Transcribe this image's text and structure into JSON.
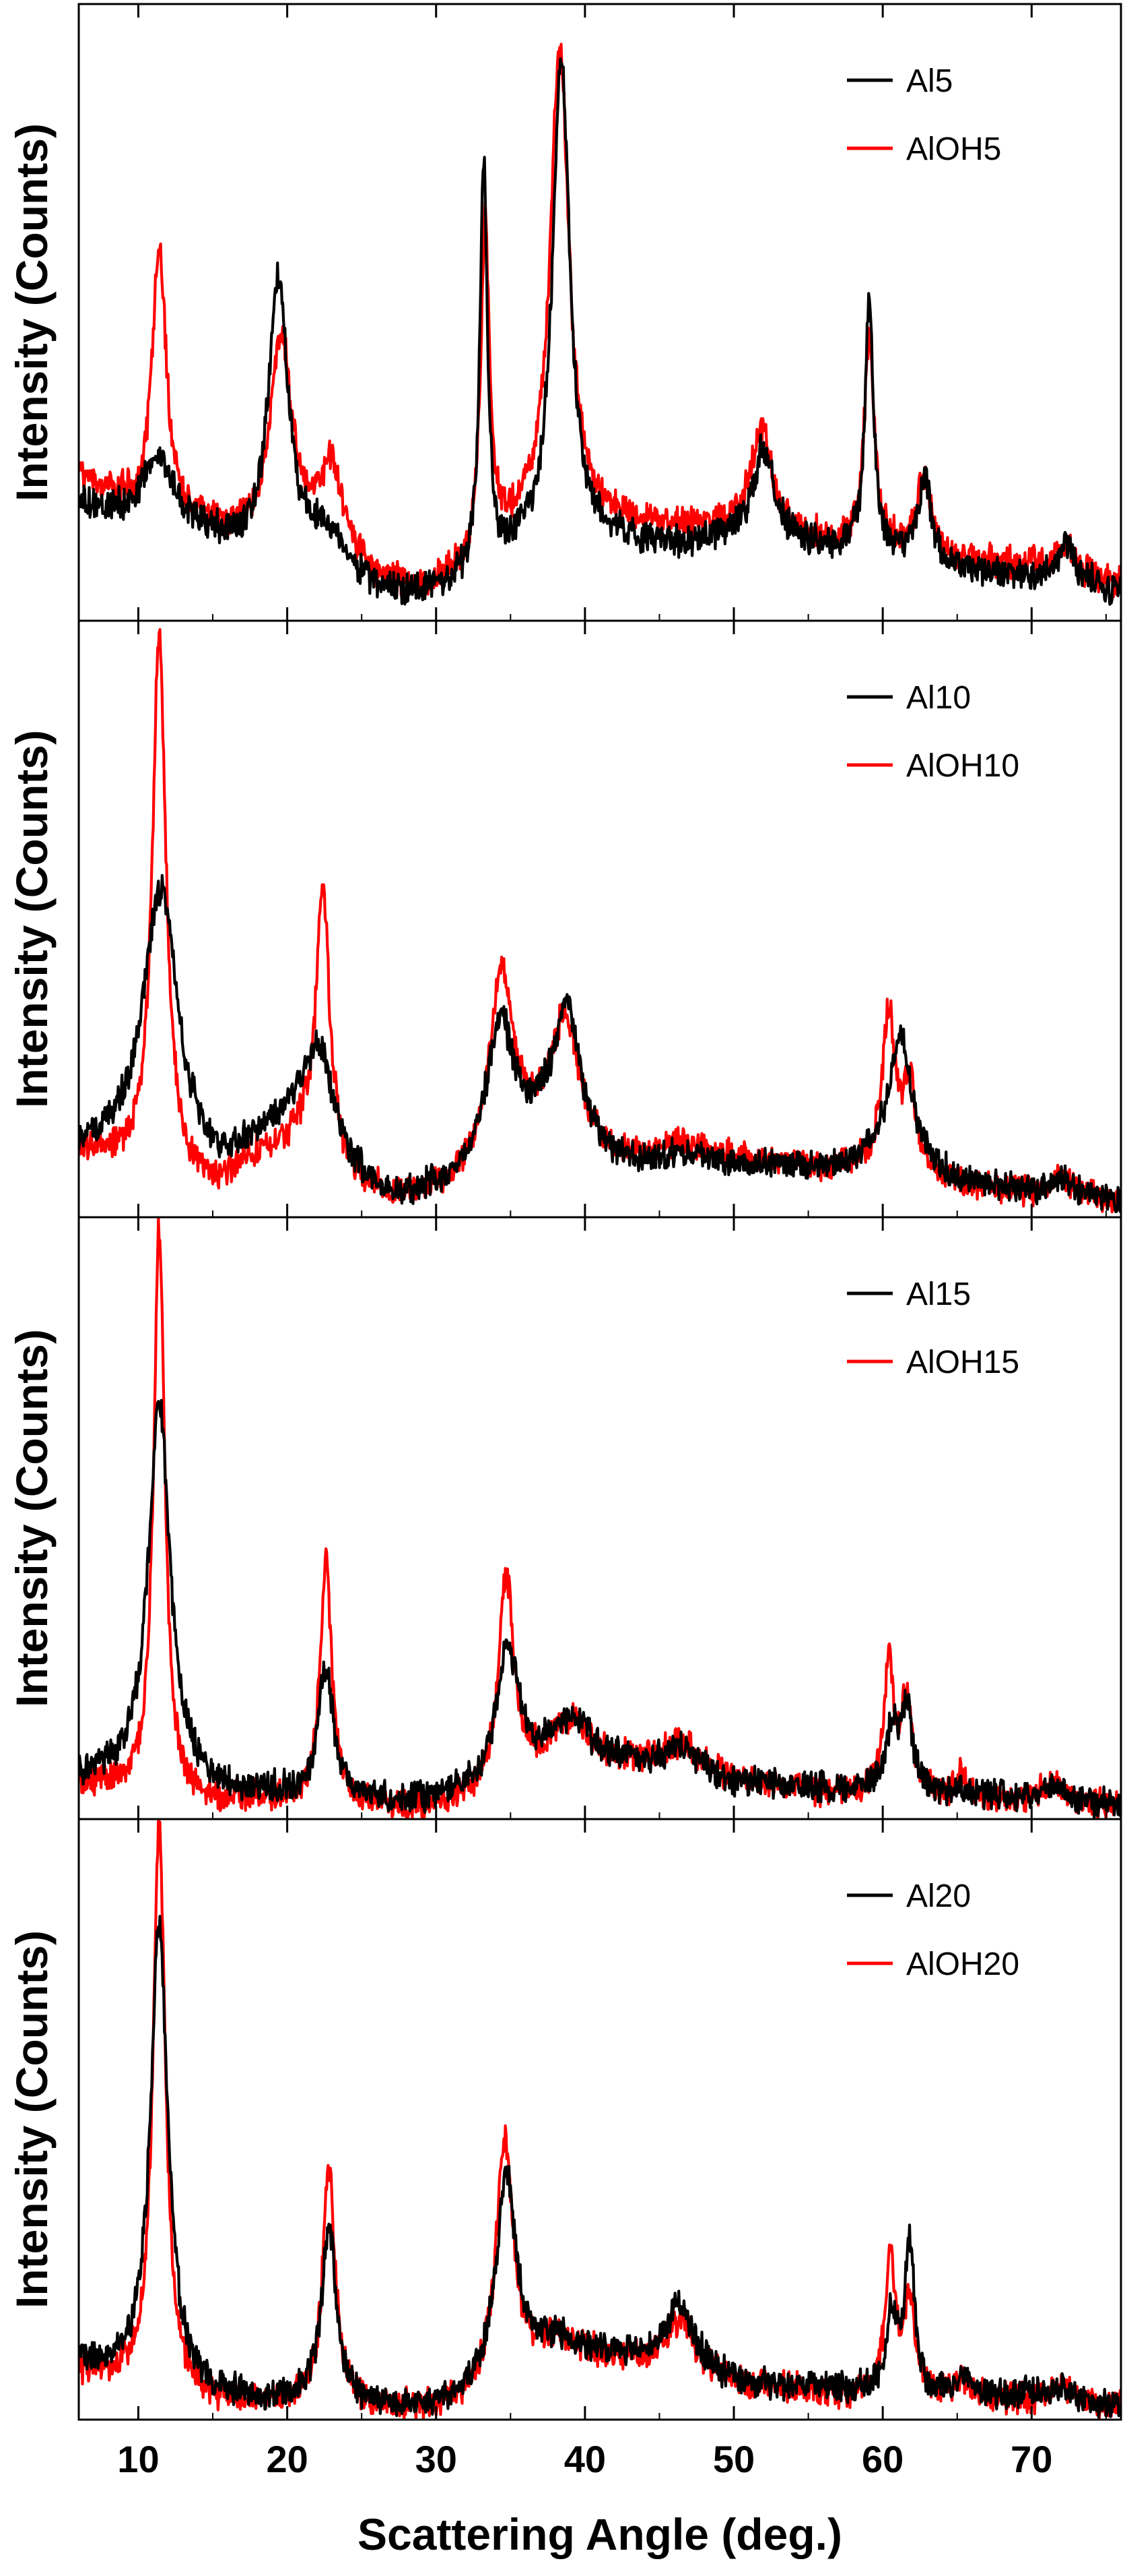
{
  "chart_data": {
    "type": "line",
    "title": "",
    "xlabel": "Scattering Angle (deg.)",
    "ylabel": "Intensity (Counts)",
    "xlim": [
      6,
      76
    ],
    "x_ticks": [
      10,
      20,
      30,
      40,
      50,
      60,
      70
    ],
    "x_tick_labels": [
      "10",
      "20",
      "30",
      "40",
      "50",
      "60",
      "70"
    ],
    "y_ticks_shown": false,
    "grid": false,
    "legend_position": "top-right",
    "series_colors": {
      "Al": "#000000",
      "AlOH": "#ff0000"
    },
    "panels": [
      {
        "ylim": [
          0,
          100
        ],
        "series": [
          {
            "name": "Al5",
            "color": "#000000",
            "baseline": [
              [
                6,
                18
              ],
              [
                10,
                14
              ],
              [
                14,
                13
              ],
              [
                17,
                10
              ],
              [
                22,
                9
              ],
              [
                26,
                4
              ],
              [
                29,
                3
              ],
              [
                32,
                5
              ],
              [
                36,
                10
              ],
              [
                42,
                12
              ],
              [
                46,
                11
              ],
              [
                50,
                13
              ],
              [
                56,
                11
              ],
              [
                65,
                7
              ],
              [
                70,
                6
              ],
              [
                76,
                4
              ]
            ],
            "peaks": [
              {
                "c": 11.3,
                "h": 12,
                "w": 1.4
              },
              {
                "c": 19.4,
                "h": 46,
                "w": 0.8
              },
              {
                "c": 22.8,
                "h": 5,
                "w": 1.0
              },
              {
                "c": 33.2,
                "h": 68,
                "w": 0.3
              },
              {
                "c": 38.4,
                "h": 80,
                "w": 0.7
              },
              {
                "c": 52.0,
                "h": 15,
                "w": 0.8
              },
              {
                "c": 59.1,
                "h": 42,
                "w": 0.35
              },
              {
                "c": 62.8,
                "h": 14,
                "w": 0.6
              },
              {
                "c": 72.3,
                "h": 7,
                "w": 0.7
              }
            ]
          },
          {
            "name": "AlOH5",
            "color": "#ff0000",
            "baseline": [
              [
                6,
                23
              ],
              [
                10,
                17
              ],
              [
                14,
                15
              ],
              [
                17,
                12
              ],
              [
                22,
                11
              ],
              [
                26,
                5
              ],
              [
                29,
                4
              ],
              [
                32,
                7
              ],
              [
                36,
                14
              ],
              [
                42,
                15
              ],
              [
                46,
                14
              ],
              [
                50,
                15
              ],
              [
                56,
                12
              ],
              [
                65,
                9
              ],
              [
                70,
                8
              ],
              [
                76,
                5
              ]
            ],
            "peaks": [
              {
                "c": 11.4,
                "h": 45,
                "w": 0.55
              },
              {
                "c": 19.6,
                "h": 34,
                "w": 0.9
              },
              {
                "c": 23.0,
                "h": 14,
                "w": 0.9
              },
              {
                "c": 33.3,
                "h": 55,
                "w": 0.35
              },
              {
                "c": 38.3,
                "h": 80,
                "w": 0.75
              },
              {
                "c": 51.9,
                "h": 17,
                "w": 0.8
              },
              {
                "c": 59.1,
                "h": 35,
                "w": 0.4
              },
              {
                "c": 62.8,
                "h": 13,
                "w": 0.6
              },
              {
                "c": 72.3,
                "h": 5,
                "w": 0.8
              }
            ]
          }
        ]
      },
      {
        "ylim": [
          0,
          100
        ],
        "series": [
          {
            "name": "Al10",
            "color": "#000000",
            "baseline": [
              [
                6,
                10
              ],
              [
                10,
                10
              ],
              [
                15,
                6
              ],
              [
                18,
                11
              ],
              [
                21,
                17
              ],
              [
                24,
                7
              ],
              [
                27,
                2
              ],
              [
                30,
                3
              ],
              [
                33,
                6
              ],
              [
                37,
                12
              ],
              [
                40,
                8
              ],
              [
                44,
                7
              ],
              [
                50,
                8
              ],
              [
                57,
                7
              ],
              [
                60,
                9
              ],
              [
                65,
                5
              ],
              [
                70,
                3
              ],
              [
                76,
                2
              ]
            ],
            "peaks": [
              {
                "c": 11.5,
                "h": 46,
                "w": 1.4
              },
              {
                "c": 22.2,
                "h": 15,
                "w": 1.0
              },
              {
                "c": 34.3,
                "h": 24,
                "w": 1.1
              },
              {
                "c": 38.8,
                "h": 25,
                "w": 1.1
              },
              {
                "c": 46.5,
                "h": 2,
                "w": 1.5
              },
              {
                "c": 61.2,
                "h": 22,
                "w": 0.9
              },
              {
                "c": 72.0,
                "h": 3,
                "w": 1.0
              }
            ]
          },
          {
            "name": "AlOH10",
            "color": "#ff0000",
            "baseline": [
              [
                6,
                10
              ],
              [
                10,
                8
              ],
              [
                15,
                4
              ],
              [
                18,
                9
              ],
              [
                21,
                12
              ],
              [
                24,
                5
              ],
              [
                27,
                2
              ],
              [
                30,
                3
              ],
              [
                33,
                5
              ],
              [
                37,
                12
              ],
              [
                40,
                9
              ],
              [
                44,
                8
              ],
              [
                50,
                9
              ],
              [
                57,
                7
              ],
              [
                60,
                8
              ],
              [
                65,
                5
              ],
              [
                70,
                3
              ],
              [
                76,
                2
              ]
            ],
            "peaks": [
              {
                "c": 11.4,
                "h": 92,
                "w": 0.55
              },
              {
                "c": 22.4,
                "h": 46,
                "w": 0.55
              },
              {
                "c": 34.4,
                "h": 33,
                "w": 1.0
              },
              {
                "c": 38.7,
                "h": 22,
                "w": 1.1
              },
              {
                "c": 46.5,
                "h": 3,
                "w": 1.5
              },
              {
                "c": 60.4,
                "h": 26,
                "w": 0.5
              },
              {
                "c": 61.8,
                "h": 15,
                "w": 0.5
              },
              {
                "c": 72.0,
                "h": 3,
                "w": 1.0
              }
            ]
          }
        ]
      },
      {
        "ylim": [
          0,
          100
        ],
        "series": [
          {
            "name": "Al15",
            "color": "#000000",
            "baseline": [
              [
                6,
                6
              ],
              [
                9,
                5
              ],
              [
                15,
                3
              ],
              [
                19,
                3
              ],
              [
                26,
                2
              ],
              [
                30,
                2
              ],
              [
                33,
                4
              ],
              [
                38,
                10
              ],
              [
                44,
                8
              ],
              [
                50,
                5
              ],
              [
                58,
                4
              ],
              [
                65,
                3
              ],
              [
                70,
                3
              ],
              [
                76,
                1
              ]
            ],
            "peaks": [
              {
                "c": 11.4,
                "h": 65,
                "w": 0.9
              },
              {
                "c": 22.6,
                "h": 22,
                "w": 0.6
              },
              {
                "c": 34.8,
                "h": 22,
                "w": 0.9
              },
              {
                "c": 39.2,
                "h": 6,
                "w": 1.2
              },
              {
                "c": 46.5,
                "h": 4,
                "w": 1.5
              },
              {
                "c": 60.6,
                "h": 10,
                "w": 0.45
              },
              {
                "c": 61.6,
                "h": 14,
                "w": 0.5
              },
              {
                "c": 71.5,
                "h": 2,
                "w": 1.0
              }
            ]
          },
          {
            "name": "AlOH15",
            "color": "#ff0000",
            "baseline": [
              [
                6,
                5
              ],
              [
                9,
                4
              ],
              [
                15,
                2
              ],
              [
                19,
                2
              ],
              [
                26,
                1
              ],
              [
                30,
                1
              ],
              [
                33,
                3
              ],
              [
                38,
                10
              ],
              [
                44,
                8
              ],
              [
                50,
                5
              ],
              [
                58,
                3
              ],
              [
                65,
                3
              ],
              [
                70,
                2
              ],
              [
                76,
                1
              ]
            ],
            "peaks": [
              {
                "c": 11.4,
                "h": 96,
                "w": 0.45
              },
              {
                "c": 22.6,
                "h": 42,
                "w": 0.45
              },
              {
                "c": 34.7,
                "h": 35,
                "w": 0.6
              },
              {
                "c": 39.2,
                "h": 6,
                "w": 1.2
              },
              {
                "c": 46.5,
                "h": 5,
                "w": 1.5
              },
              {
                "c": 60.4,
                "h": 22,
                "w": 0.4
              },
              {
                "c": 61.6,
                "h": 16,
                "w": 0.45
              },
              {
                "c": 65.3,
                "h": 4,
                "w": 0.3
              },
              {
                "c": 71.5,
                "h": 3,
                "w": 1.0
              }
            ]
          }
        ]
      },
      {
        "ylim": [
          0,
          100
        ],
        "series": [
          {
            "name": "Al20",
            "color": "#000000",
            "baseline": [
              [
                6,
                8
              ],
              [
                9,
                7
              ],
              [
                15,
                3
              ],
              [
                19,
                2
              ],
              [
                26,
                1
              ],
              [
                30,
                1
              ],
              [
                33,
                4
              ],
              [
                38,
                12
              ],
              [
                44,
                9
              ],
              [
                50,
                5
              ],
              [
                58,
                4
              ],
              [
                65,
                3
              ],
              [
                70,
                3
              ],
              [
                76,
                1
              ]
            ],
            "peaks": [
              {
                "c": 11.4,
                "h": 78,
                "w": 0.7
              },
              {
                "c": 22.8,
                "h": 30,
                "w": 0.6
              },
              {
                "c": 34.7,
                "h": 34,
                "w": 0.8
              },
              {
                "c": 46.4,
                "h": 11,
                "w": 1.2
              },
              {
                "c": 60.6,
                "h": 12,
                "w": 0.45
              },
              {
                "c": 61.8,
                "h": 25,
                "w": 0.4
              },
              {
                "c": 65.5,
                "h": 3,
                "w": 0.5
              },
              {
                "c": 72.0,
                "h": 2,
                "w": 1.0
              }
            ]
          },
          {
            "name": "AlOH20",
            "color": "#ff0000",
            "baseline": [
              [
                6,
                7
              ],
              [
                9,
                6
              ],
              [
                15,
                2
              ],
              [
                19,
                2
              ],
              [
                26,
                1
              ],
              [
                30,
                1
              ],
              [
                33,
                3
              ],
              [
                38,
                12
              ],
              [
                44,
                8
              ],
              [
                50,
                5
              ],
              [
                58,
                3
              ],
              [
                65,
                3
              ],
              [
                70,
                2
              ],
              [
                76,
                1
              ]
            ],
            "peaks": [
              {
                "c": 11.4,
                "h": 96,
                "w": 0.5
              },
              {
                "c": 22.8,
                "h": 40,
                "w": 0.5
              },
              {
                "c": 34.6,
                "h": 41,
                "w": 0.7
              },
              {
                "c": 46.4,
                "h": 9,
                "w": 1.2
              },
              {
                "c": 60.5,
                "h": 24,
                "w": 0.4
              },
              {
                "c": 61.8,
                "h": 16,
                "w": 0.45
              },
              {
                "c": 65.5,
                "h": 3,
                "w": 0.5
              },
              {
                "c": 72.0,
                "h": 3,
                "w": 1.0
              }
            ]
          }
        ]
      }
    ]
  }
}
